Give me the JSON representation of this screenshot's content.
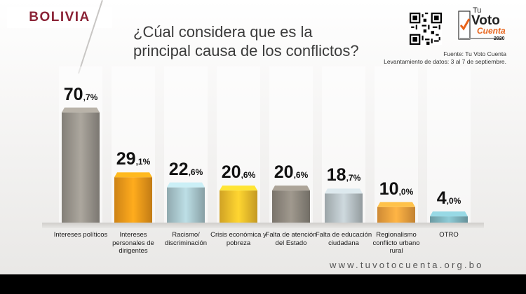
{
  "header": {
    "country": "BOLIVIA",
    "title_line1": "¿Cúal considera que es la",
    "title_line2": "principal causa de los conflictos?"
  },
  "logo": {
    "line1": "Tu",
    "line2": "Voto",
    "line3": "Cuenta",
    "year": "2020"
  },
  "source": {
    "line1": "Fuente: Tu Voto Cuenta",
    "line2": "Levantamiento de datos: 3 al 7 de septiembre."
  },
  "footer": {
    "url": "www.tuvotocuenta.org.bo"
  },
  "colors": {
    "brand": "#8b2336",
    "bars": [
      "#9a958d",
      "#f29a1a",
      "#a9c7cd",
      "#f5bf2c",
      "#8f897f",
      "#b8c2c6",
      "#f2a23e",
      "#7fb5bf"
    ]
  },
  "chart_data": {
    "type": "bar",
    "categories": [
      "Intereses políticos",
      "Intereses personales de dirigentes",
      "Racismo/ discriminación",
      "Crisis económica y pobreza",
      "Falta de atención del Estado",
      "Falta de educación ciudadana",
      "Regionalismo conflicto urbano rural",
      "OTRO"
    ],
    "values": [
      70.7,
      29.1,
      22.6,
      20.6,
      20.6,
      18.7,
      10.0,
      4.0
    ],
    "labels_int": [
      "70",
      "29",
      "22",
      "20",
      "20",
      "18",
      "10",
      "4"
    ],
    "labels_dec": [
      ",7%",
      ",1%",
      ",6%",
      ",6%",
      ",6%",
      ",7%",
      ",0%",
      ",0%"
    ],
    "unit": "%",
    "ylim": [
      0,
      80
    ]
  }
}
